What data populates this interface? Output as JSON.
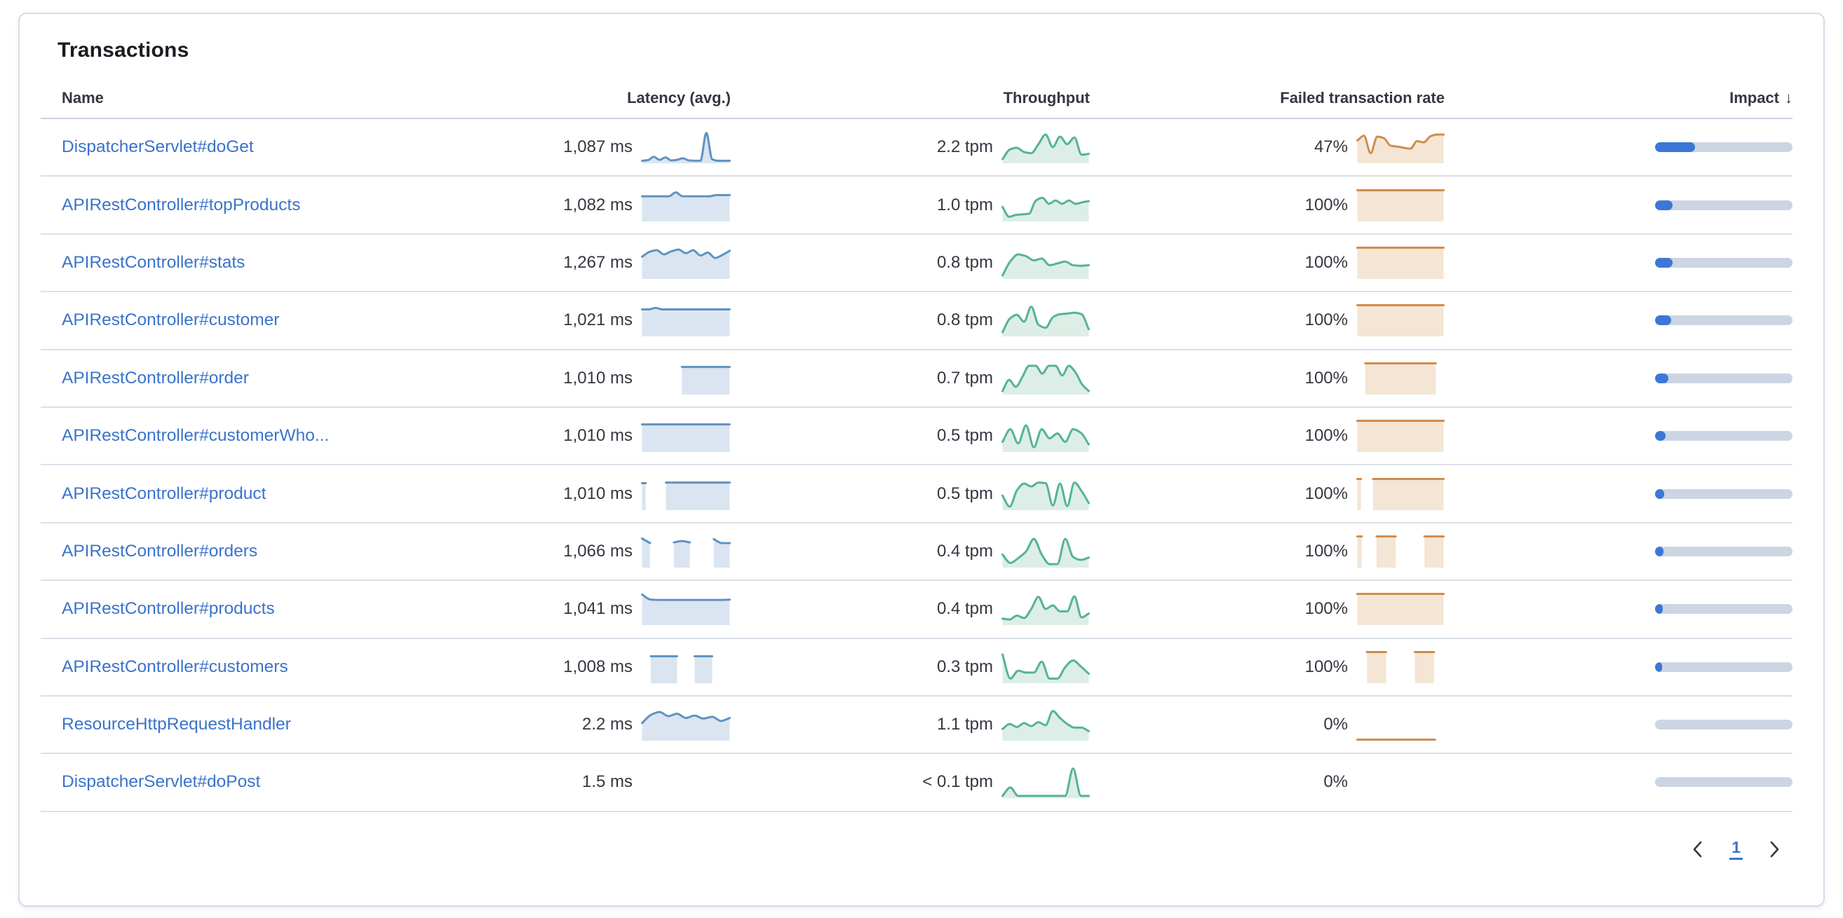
{
  "panel": {
    "title": "Transactions"
  },
  "table": {
    "columns": [
      "Name",
      "Latency (avg.)",
      "Throughput",
      "Failed transaction rate",
      "Impact"
    ],
    "sort": {
      "column": "Impact",
      "direction": "desc",
      "arrow": "↓"
    },
    "rows": [
      {
        "name": "DispatcherServlet#doGet",
        "latency": "1,087 ms",
        "throughput": "2.2 tpm",
        "failed_rate": "47%",
        "impact_pct": 29,
        "latency_spark": [
          0.05,
          0.07,
          0.18,
          0.08,
          0.16,
          0.06,
          0.08,
          0.13,
          0.06,
          0.05,
          0.05,
          0.97,
          0.1,
          0.05,
          0.05,
          0.05
        ],
        "throughput_spark": [
          0.1,
          0.42,
          0.48,
          0.34,
          0.3,
          0.6,
          0.92,
          0.5,
          0.85,
          0.6,
          0.82,
          0.25,
          0.28
        ],
        "failed_spark": [
          0.72,
          0.88,
          0.3,
          0.85,
          0.8,
          0.55,
          0.52,
          0.48,
          0.45,
          0.7,
          0.66,
          0.86,
          0.92,
          0.92
        ]
      },
      {
        "name": "APIRestController#topProducts",
        "latency": "1,082 ms",
        "throughput": "1.0 tpm",
        "failed_rate": "100%",
        "impact_pct": 13,
        "latency_spark": [
          0.8,
          0.8,
          0.8,
          0.8,
          0.8,
          0.93,
          0.8,
          0.8,
          0.8,
          0.8,
          0.8,
          0.84,
          0.84,
          0.84
        ],
        "throughput_spark": [
          0.45,
          0.12,
          0.18,
          0.2,
          0.22,
          0.65,
          0.75,
          0.55,
          0.66,
          0.55,
          0.66,
          0.55,
          0.6,
          0.64
        ],
        "failed_spark": [
          1,
          1,
          1,
          1,
          1,
          1,
          1,
          1,
          1,
          1,
          1,
          1
        ]
      },
      {
        "name": "APIRestController#stats",
        "latency": "1,267 ms",
        "throughput": "0.8 tpm",
        "failed_rate": "100%",
        "impact_pct": 13,
        "latency_spark": [
          0.7,
          0.86,
          0.92,
          0.78,
          0.88,
          0.94,
          0.82,
          0.92,
          0.74,
          0.84,
          0.66,
          0.76,
          0.9
        ],
        "throughput_spark": [
          0.08,
          0.55,
          0.78,
          0.72,
          0.58,
          0.64,
          0.42,
          0.48,
          0.54,
          0.42,
          0.4,
          0.42
        ],
        "failed_spark": [
          1,
          1,
          1,
          1,
          1,
          1,
          1,
          1,
          1,
          1,
          1,
          1
        ]
      },
      {
        "name": "APIRestController#customer",
        "latency": "1,021 ms",
        "throughput": "0.8 tpm",
        "failed_rate": "100%",
        "impact_pct": 11.5,
        "latency_spark": [
          0.86,
          0.86,
          0.91,
          0.86,
          0.86,
          0.86,
          0.86,
          0.86,
          0.86,
          0.86,
          0.86,
          0.86,
          0.86,
          0.86
        ],
        "throughput_spark": [
          0.1,
          0.55,
          0.68,
          0.45,
          0.95,
          0.35,
          0.25,
          0.6,
          0.7,
          0.72,
          0.75,
          0.7,
          0.2
        ],
        "failed_spark": [
          1,
          1,
          1,
          1,
          1,
          1,
          1,
          1,
          1,
          1,
          1,
          1
        ]
      },
      {
        "name": "APIRestController#order",
        "latency": "1,010 ms",
        "throughput": "0.7 tpm",
        "failed_rate": "100%",
        "impact_pct": 9.5,
        "latency_spark": [
          null,
          null,
          null,
          null,
          null,
          0.88,
          0.88,
          0.88,
          0.88,
          0.88,
          0.88,
          0.88
        ],
        "throughput_spark": [
          0.08,
          0.45,
          0.22,
          0.55,
          0.92,
          0.92,
          0.66,
          0.92,
          0.92,
          0.6,
          0.92,
          0.7,
          0.3,
          0.08
        ],
        "failed_spark": [
          null,
          1,
          1,
          1,
          1,
          1,
          1,
          1,
          1,
          1,
          1,
          null
        ]
      },
      {
        "name": "APIRestController#customerWho...",
        "latency": "1,010 ms",
        "throughput": "0.5 tpm",
        "failed_rate": "100%",
        "impact_pct": 7.5,
        "latency_spark": [
          0.88,
          0.88,
          0.88,
          0.88,
          0.88,
          0.88,
          0.88,
          0.88,
          0.88,
          0.88,
          0.88,
          0.88,
          0.88,
          0.88
        ],
        "throughput_spark": [
          0.3,
          0.72,
          0.25,
          0.85,
          0.12,
          0.72,
          0.42,
          0.58,
          0.3,
          0.72,
          0.6,
          0.22
        ],
        "failed_spark": [
          1,
          1,
          1,
          1,
          1,
          1,
          1,
          1,
          1,
          1,
          1,
          1
        ]
      },
      {
        "name": "APIRestController#product",
        "latency": "1,010 ms",
        "throughput": "0.5 tpm",
        "failed_rate": "100%",
        "impact_pct": 6.5,
        "latency_spark": [
          0.86,
          null,
          null,
          0.88,
          0.88,
          0.88,
          0.88,
          0.88,
          0.88,
          0.88,
          0.88,
          0.88
        ],
        "throughput_spark": [
          0.45,
          0.08,
          0.62,
          0.85,
          0.75,
          0.88,
          0.86,
          0.12,
          0.85,
          0.1,
          0.88,
          0.6,
          0.2
        ],
        "failed_spark": [
          1,
          null,
          1,
          1,
          1,
          1,
          1,
          1,
          1,
          1,
          1,
          1
        ]
      },
      {
        "name": "APIRestController#orders",
        "latency": "1,066 ms",
        "throughput": "0.4 tpm",
        "failed_rate": "100%",
        "impact_pct": 6,
        "latency_spark": [
          0.93,
          0.78,
          null,
          null,
          0.8,
          0.85,
          0.8,
          null,
          null,
          0.91,
          0.78,
          0.78
        ],
        "throughput_spark": [
          0.4,
          0.12,
          0.28,
          0.5,
          0.92,
          0.4,
          0.08,
          0.08,
          0.92,
          0.32,
          0.22,
          0.3
        ],
        "failed_spark": [
          1,
          null,
          1,
          1,
          1,
          null,
          null,
          1,
          1,
          1
        ]
      },
      {
        "name": "APIRestController#products",
        "latency": "1,041 ms",
        "throughput": "0.4 tpm",
        "failed_rate": "100%",
        "impact_pct": 5.5,
        "latency_spark": [
          0.98,
          0.81,
          0.8,
          0.8,
          0.8,
          0.8,
          0.8,
          0.8,
          0.8,
          0.8,
          0.81
        ],
        "throughput_spark": [
          0.18,
          0.15,
          0.28,
          0.2,
          0.5,
          0.9,
          0.5,
          0.62,
          0.42,
          0.42,
          0.92,
          0.22,
          0.35
        ],
        "failed_spark": [
          1,
          1,
          1,
          1,
          1,
          1,
          1,
          1,
          1,
          1,
          1,
          1
        ]
      },
      {
        "name": "APIRestController#customers",
        "latency": "1,008 ms",
        "throughput": "0.3 tpm",
        "failed_rate": "100%",
        "impact_pct": 5,
        "latency_spark": [
          null,
          0.86,
          0.86,
          0.86,
          0.86,
          null,
          0.86,
          0.86,
          0.86,
          null,
          null
        ],
        "throughput_spark": [
          0.92,
          0.12,
          0.38,
          0.32,
          0.32,
          0.68,
          0.12,
          0.12,
          0.5,
          0.72,
          0.52,
          0.28
        ],
        "failed_spark": [
          null,
          1,
          1,
          1,
          null,
          null,
          1,
          1,
          1,
          null
        ]
      },
      {
        "name": "ResourceHttpRequestHandler",
        "latency": "2.2 ms",
        "throughput": "1.1 tpm",
        "failed_rate": "0%",
        "impact_pct": 0,
        "latency_spark": [
          0.55,
          0.82,
          0.92,
          0.78,
          0.86,
          0.72,
          0.8,
          0.7,
          0.76,
          0.62,
          0.72
        ],
        "throughput_spark": [
          0.35,
          0.52,
          0.42,
          0.55,
          0.45,
          0.58,
          0.48,
          0.95,
          0.72,
          0.52,
          0.4,
          0.4,
          0.28
        ],
        "failed_spark": [
          0,
          0,
          0,
          0,
          0,
          0,
          0,
          0,
          0,
          0,
          null
        ]
      },
      {
        "name": "DispatcherServlet#doPost",
        "latency": "1.5 ms",
        "throughput": "< 0.1 tpm",
        "failed_rate": "0%",
        "impact_pct": 0,
        "latency_spark": null,
        "throughput_spark": [
          0.04,
          0.32,
          0.04,
          0.04,
          0.04,
          0.04,
          0.04,
          0.04,
          0.04,
          0.95,
          0.04,
          0.04
        ],
        "failed_spark": null
      }
    ]
  },
  "pagination": {
    "current_page": "1"
  },
  "colors": {
    "link": "#3b73ca",
    "latency_line": "#6092c0",
    "latency_fill": "#dae5f1",
    "throughput_line": "#54b399",
    "throughput_fill": "#ddeee7",
    "failed_line": "#d08c4c",
    "failed_fill": "#f4e5d4",
    "impact_fill": "#3c77d6",
    "impact_track": "#ccd5e2",
    "divider": "#dbe1ea"
  }
}
